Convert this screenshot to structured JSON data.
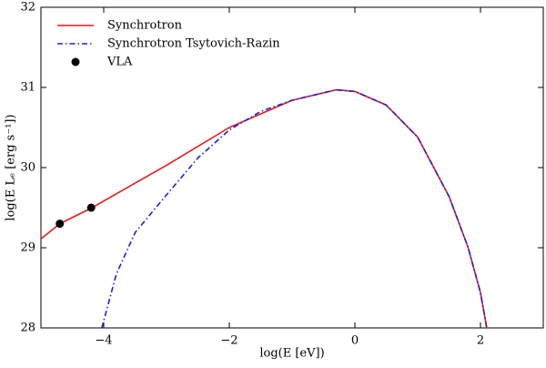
{
  "chart_data": {
    "type": "line",
    "xlabel": "log(E [eV])",
    "ylabel": "log(E Lₑ [erg s⁻¹])",
    "xlim": [
      -5,
      3
    ],
    "ylim": [
      28,
      32
    ],
    "xticks": [
      {
        "value": -4,
        "label": "−4"
      },
      {
        "value": -2,
        "label": "−2"
      },
      0,
      2
    ],
    "yticks": [
      28,
      29,
      30,
      31,
      32
    ],
    "legend": "upper left",
    "series": [
      {
        "name": "Synchrotron",
        "color": "#e41a1c",
        "linestyle": "solid",
        "x": [
          -5,
          -4.7,
          -4.21,
          -3,
          -2,
          -1,
          -0.3,
          0,
          0.5,
          1,
          1.5,
          1.8,
          2,
          2.1
        ],
        "values": [
          29.11,
          29.3,
          29.49,
          30.03,
          30.5,
          30.84,
          30.97,
          30.95,
          30.78,
          30.38,
          29.64,
          29.01,
          28.44,
          28.0
        ]
      },
      {
        "name": "Synchrotron Tsytovich-Razin",
        "color": "#1f1fd6",
        "linestyle": "dashdot",
        "x": [
          -4.03,
          -3.8,
          -3.5,
          -3,
          -2.5,
          -2,
          -1.5,
          -1,
          -0.3,
          0,
          0.5,
          1,
          1.5,
          1.8,
          2,
          2.1
        ],
        "values": [
          28.0,
          28.67,
          29.19,
          29.66,
          30.12,
          30.47,
          30.7,
          30.84,
          30.97,
          30.95,
          30.78,
          30.38,
          29.64,
          29.01,
          28.44,
          28.0
        ]
      },
      {
        "name": "VLA",
        "color": "#000000",
        "marker": "circle",
        "x": [
          -4.7,
          -4.2
        ],
        "values": [
          29.3,
          29.5
        ]
      }
    ]
  }
}
